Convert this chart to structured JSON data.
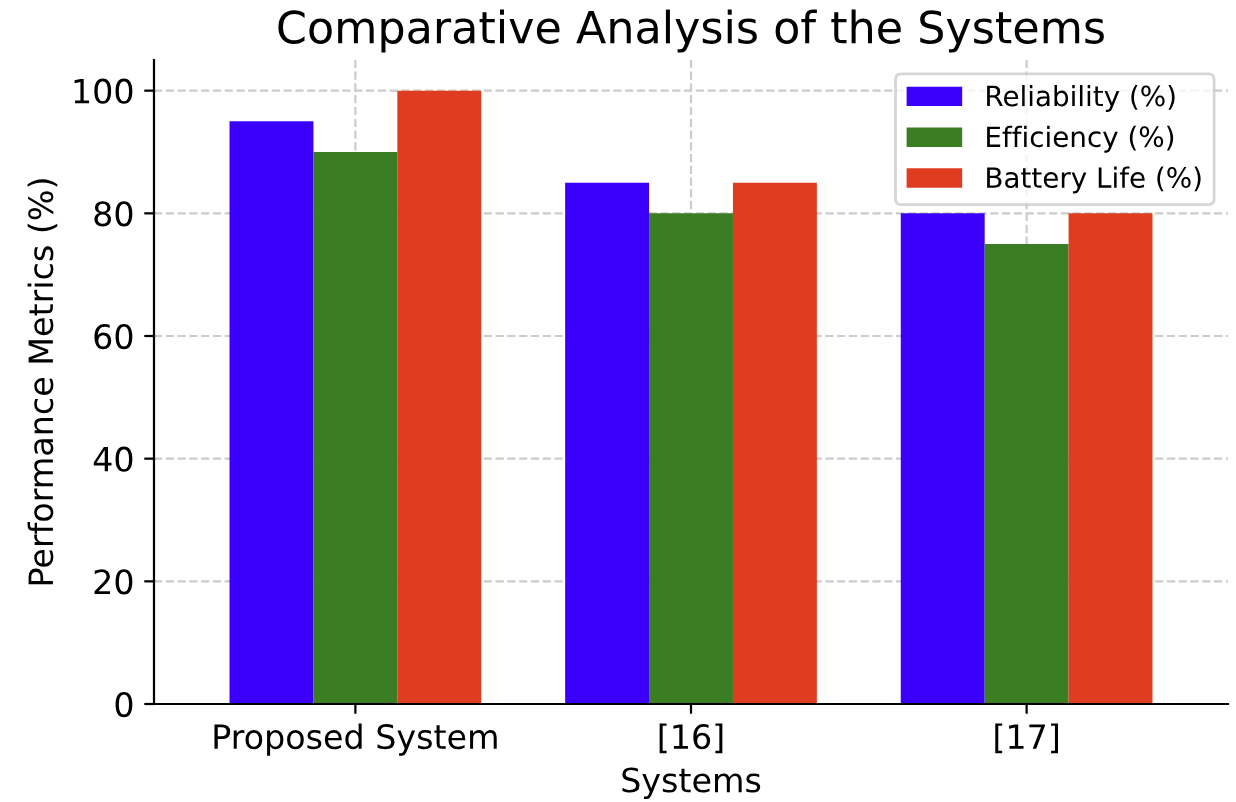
{
  "chart_data": {
    "type": "bar",
    "title": "Comparative Analysis of the Systems",
    "xlabel": "Systems",
    "ylabel": "Performance Metrics (%)",
    "categories": [
      "Proposed System",
      "[16]",
      "[17]"
    ],
    "series": [
      {
        "name": "Reliability (%)",
        "color": "#3a00fa",
        "values": [
          95,
          85,
          80
        ]
      },
      {
        "name": "Efficiency (%)",
        "color": "#3a7d22",
        "values": [
          90,
          80,
          75
        ]
      },
      {
        "name": "Battery Life (%)",
        "color": "#e03c20",
        "values": [
          100,
          85,
          80
        ]
      }
    ],
    "ylim": [
      0,
      105
    ],
    "yticks": [
      0,
      20,
      40,
      60,
      80,
      100
    ],
    "grid": true,
    "legend": "top right"
  }
}
